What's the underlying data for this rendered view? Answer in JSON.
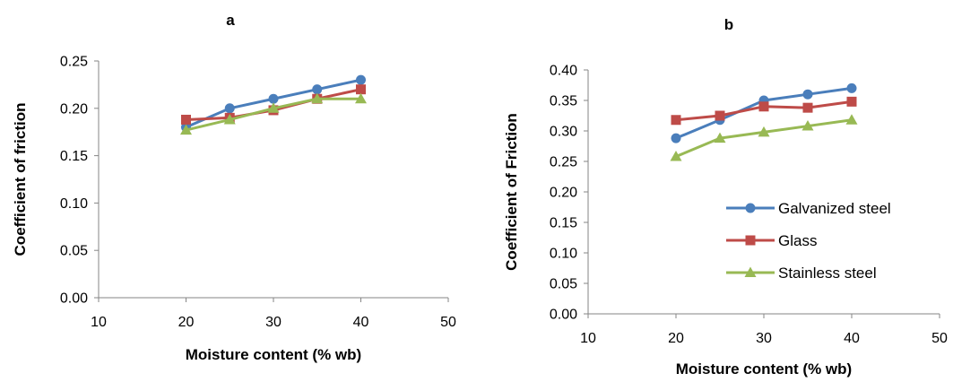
{
  "chart_data": [
    {
      "type": "line",
      "title": "a",
      "xlabel": "Moisture content  (% wb)",
      "ylabel": "Coefficient of friction",
      "xlim": [
        10,
        50
      ],
      "ylim": [
        0,
        0.25
      ],
      "xticks": [
        "10",
        "20",
        "30",
        "40",
        "50"
      ],
      "yticks": [
        "0.00",
        "0.05",
        "0.10",
        "0.15",
        "0.20",
        "0.25"
      ],
      "x": [
        20,
        25,
        30,
        35,
        40
      ],
      "series": [
        {
          "name": "Galvanized steel",
          "color": "#4a7ebb",
          "marker": "circle",
          "values": [
            0.18,
            0.2,
            0.21,
            0.22,
            0.23
          ]
        },
        {
          "name": "Glass",
          "color": "#be4b48",
          "marker": "square",
          "values": [
            0.188,
            0.19,
            0.198,
            0.21,
            0.22
          ]
        },
        {
          "name": "Stainless steel",
          "color": "#98b954",
          "marker": "triangle",
          "values": [
            0.177,
            0.188,
            0.2,
            0.21,
            0.21
          ]
        }
      ],
      "grid": false,
      "legend": "none"
    },
    {
      "type": "line",
      "title": "b",
      "xlabel": "Moisture content  (% wb)",
      "ylabel": "Coefficient of Friction",
      "xlim": [
        10,
        50
      ],
      "ylim": [
        0,
        0.4
      ],
      "xticks": [
        "10",
        "20",
        "30",
        "40",
        "50"
      ],
      "yticks": [
        "0.00",
        "0.05",
        "0.10",
        "0.15",
        "0.20",
        "0.25",
        "0.30",
        "0.35",
        "0.40"
      ],
      "x": [
        20,
        25,
        30,
        35,
        40
      ],
      "series": [
        {
          "name": "Galvanized steel",
          "color": "#4a7ebb",
          "marker": "circle",
          "values": [
            0.288,
            0.318,
            0.35,
            0.36,
            0.37
          ]
        },
        {
          "name": "Glass",
          "color": "#be4b48",
          "marker": "square",
          "values": [
            0.318,
            0.325,
            0.34,
            0.338,
            0.348
          ]
        },
        {
          "name": "Stainless steel",
          "color": "#98b954",
          "marker": "triangle",
          "values": [
            0.258,
            0.288,
            0.298,
            0.308,
            0.318
          ]
        }
      ],
      "grid": false,
      "legend": "right"
    }
  ]
}
